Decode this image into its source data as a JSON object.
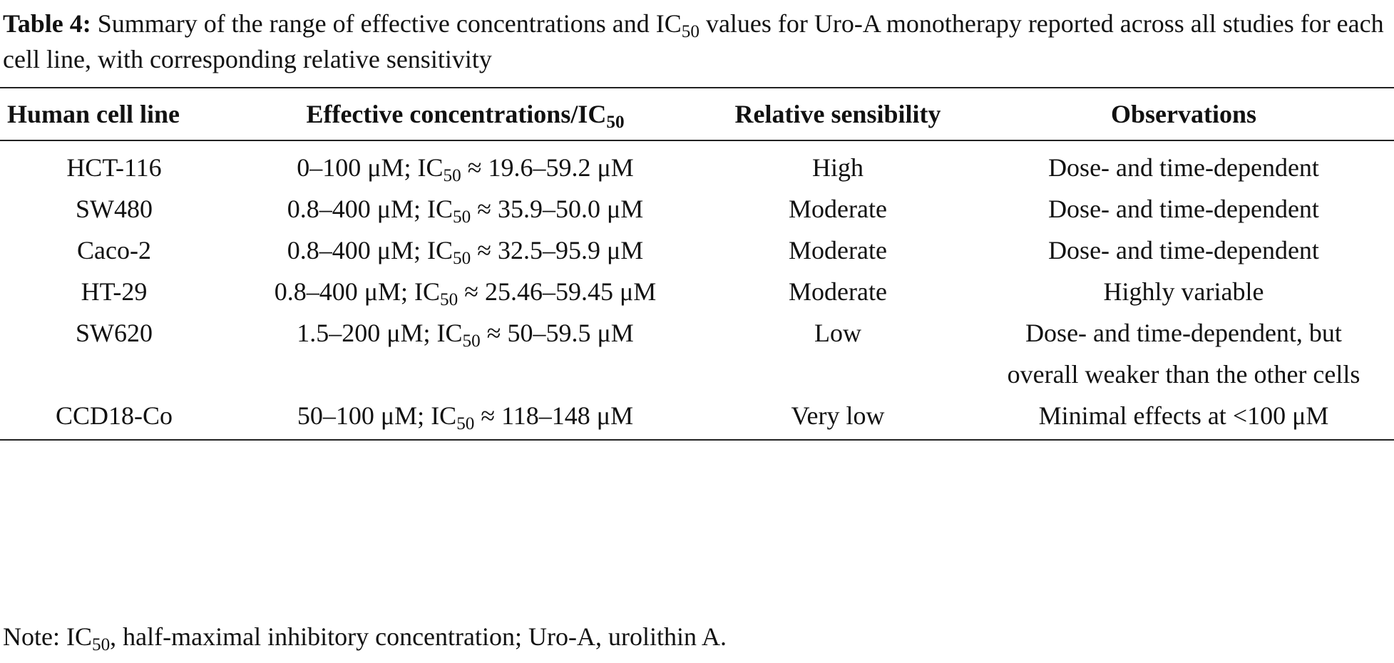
{
  "caption": {
    "label": "Table 4:",
    "text_a": "Summary of the range of effective concentrations and IC",
    "text_sub": "50",
    "text_b": " values for Uro-A monotherapy reported across all studies for each cell line, with corresponding relative sensitivity"
  },
  "table": {
    "headers": {
      "cell_line": "Human cell line",
      "effective_a": "Effective concentrations/IC",
      "effective_sub": "50",
      "sensibility": "Relative sensibility",
      "observations": "Observations"
    },
    "rows": [
      {
        "cell_line": "HCT-116",
        "conc_a": "0–100 μM; IC",
        "conc_sub": "50",
        "conc_b": " ≈ 19.6–59.2 μM",
        "sensibility": "High",
        "observations": "Dose- and time-dependent"
      },
      {
        "cell_line": "SW480",
        "conc_a": "0.8–400 μM; IC",
        "conc_sub": "50",
        "conc_b": " ≈ 35.9–50.0 μM",
        "sensibility": "Moderate",
        "observations": "Dose- and time-dependent"
      },
      {
        "cell_line": "Caco-2",
        "conc_a": "0.8–400 μM; IC",
        "conc_sub": "50",
        "conc_b": " ≈ 32.5–95.9 μM",
        "sensibility": "Moderate",
        "observations": "Dose- and time-dependent"
      },
      {
        "cell_line": "HT-29",
        "conc_a": "0.8–400 μM; IC",
        "conc_sub": "50",
        "conc_b": " ≈ 25.46–59.45 μM",
        "sensibility": "Moderate",
        "observations": "Highly variable"
      },
      {
        "cell_line": "SW620",
        "conc_a": "1.5–200 μM; IC",
        "conc_sub": "50",
        "conc_b": " ≈ 50–59.5 μM",
        "sensibility": "Low",
        "observations": "Dose- and time-dependent, but overall weaker than the other cells"
      },
      {
        "cell_line": "CCD18-Co",
        "conc_a": "50–100 μM; IC",
        "conc_sub": "50",
        "conc_b": " ≈ 118–148 μM",
        "sensibility": "Very low",
        "observations": "Minimal effects at <100 μM"
      }
    ]
  },
  "note": {
    "a": "Note: IC",
    "sub": "50",
    "b": ", half-maximal inhibitory concentration; Uro-A, urolithin A."
  }
}
